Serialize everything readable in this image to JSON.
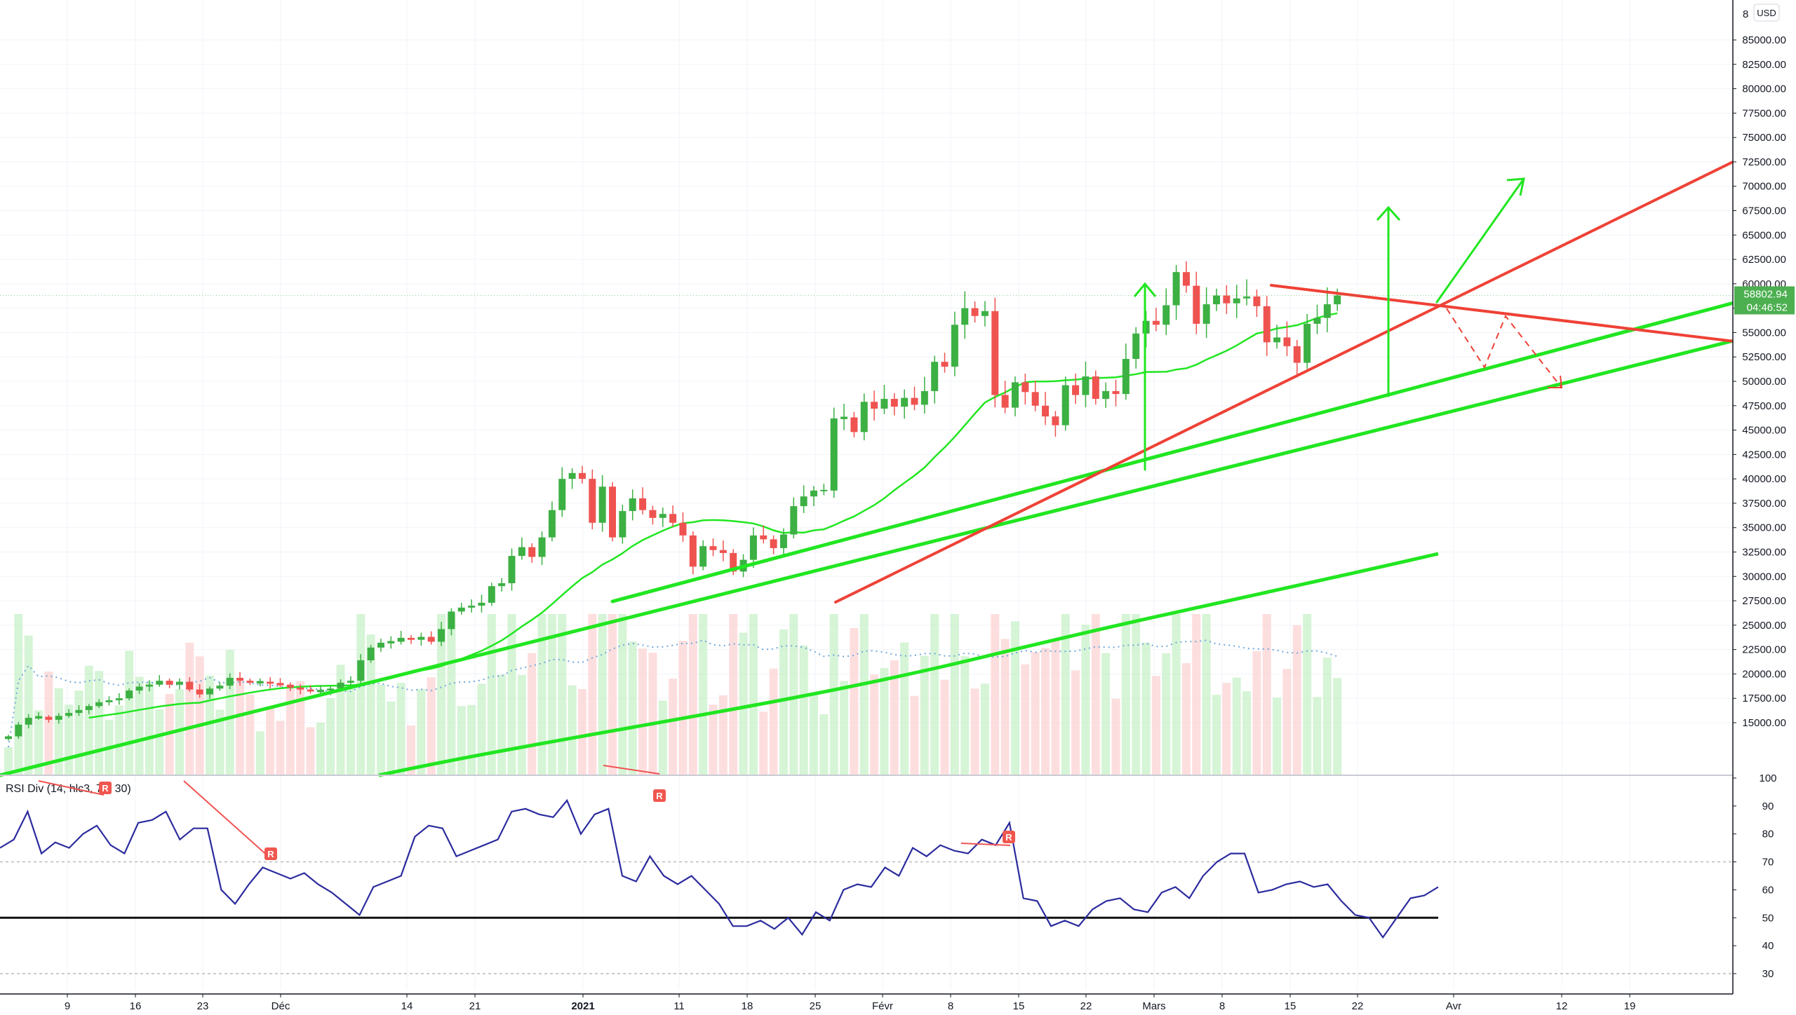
{
  "price_scale": {
    "currency": "USD",
    "top_partial": "8",
    "ticks": [
      "85000.00",
      "82500.00",
      "80000.00",
      "77500.00",
      "75000.00",
      "72500.00",
      "70000.00",
      "67500.00",
      "65000.00",
      "62500.00",
      "60000.00",
      "57500.00",
      "55000.00",
      "52500.00",
      "50000.00",
      "47500.00",
      "45000.00",
      "42500.00",
      "40000.00",
      "37500.00",
      "35000.00",
      "32500.00",
      "30000.00",
      "27500.00",
      "25000.00",
      "22500.00",
      "20000.00",
      "17500.00",
      "15000.00"
    ],
    "last_price": "58802.94",
    "countdown": "04:46:52"
  },
  "rsi_scale": {
    "ticks": [
      "100",
      "90",
      "80",
      "70",
      "60",
      "50",
      "40",
      "30"
    ]
  },
  "time_axis": {
    "labels": [
      {
        "text": "9",
        "bold": false
      },
      {
        "text": "16",
        "bold": false
      },
      {
        "text": "23",
        "bold": false
      },
      {
        "text": "Déc",
        "bold": false
      },
      {
        "text": "14",
        "bold": false
      },
      {
        "text": "21",
        "bold": false
      },
      {
        "text": "2021",
        "bold": true
      },
      {
        "text": "11",
        "bold": false
      },
      {
        "text": "18",
        "bold": false
      },
      {
        "text": "25",
        "bold": false
      },
      {
        "text": "Févr",
        "bold": false
      },
      {
        "text": "8",
        "bold": false
      },
      {
        "text": "15",
        "bold": false
      },
      {
        "text": "22",
        "bold": false
      },
      {
        "text": "Mars",
        "bold": false
      },
      {
        "text": "8",
        "bold": false
      },
      {
        "text": "15",
        "bold": false
      },
      {
        "text": "22",
        "bold": false
      },
      {
        "text": "Avr",
        "bold": false
      },
      {
        "text": "12",
        "bold": false
      },
      {
        "text": "19",
        "bold": false
      }
    ]
  },
  "indicator": {
    "title": "RSI Div (14, hlc3, 70, 30)",
    "divergence_marker": "R"
  },
  "colors": {
    "up": "#26a69a",
    "candle_up": "#3cb043",
    "candle_down": "#ef5350",
    "trend_green": "#21e621",
    "trend_red": "#ef4136",
    "rsi_line": "#2b2b9e",
    "price_tag": "#4caf50"
  },
  "chart_data": {
    "type": "candlestick",
    "timeframe": "1D",
    "price_range": [
      14000,
      87000
    ],
    "last_price": 58802.94,
    "closes": [
      13600,
      14800,
      15500,
      15600,
      15300,
      15700,
      16000,
      16300,
      16700,
      17100,
      17300,
      17500,
      18300,
      18700,
      18900,
      19300,
      18900,
      19200,
      18400,
      17900,
      18500,
      18800,
      19600,
      19300,
      19100,
      19200,
      19000,
      18900,
      18600,
      18400,
      18200,
      18300,
      18500,
      19100,
      19300,
      21400,
      22700,
      23200,
      23300,
      23700,
      23500,
      23800,
      23300,
      24600,
      26400,
      26800,
      27000,
      27300,
      29000,
      29300,
      32100,
      33000,
      32000,
      34000,
      36800,
      40000,
      40600,
      40000,
      35500,
      39200,
      34000,
      36700,
      38000,
      36800,
      36000,
      36400,
      35500,
      34200,
      31000,
      33100,
      32700,
      32400,
      30500,
      31700,
      34200,
      33800,
      32900,
      34300,
      37200,
      38200,
      38800,
      38800,
      46200,
      46300,
      44800,
      47900,
      47200,
      48200,
      47400,
      48300,
      47600,
      49000,
      52000,
      51500,
      55800,
      57500,
      56700,
      57200,
      48600,
      47300,
      49900,
      48900,
      47500,
      46400,
      45500,
      49600,
      48600,
      50500,
      48200,
      49000,
      48700,
      52300,
      54900,
      56200,
      55800,
      57800,
      61200,
      59800,
      55900,
      57900,
      58800,
      58000,
      58500,
      58700,
      57700,
      54000,
      54500,
      53600,
      51900,
      55900,
      56500,
      57900,
      58802
    ]
  }
}
